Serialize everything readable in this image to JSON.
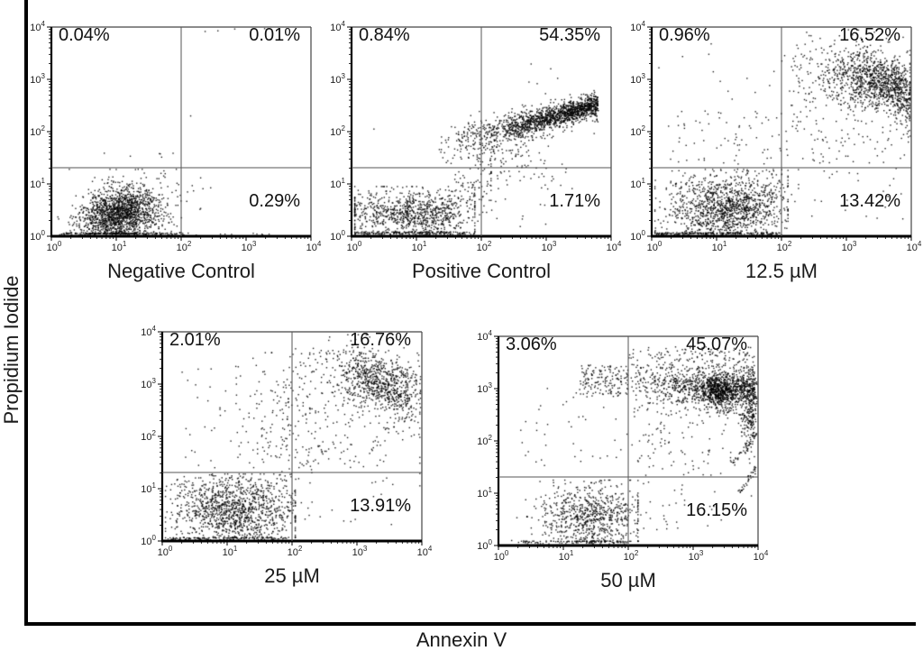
{
  "figure": {
    "x_label": "Annexin V",
    "y_label": "Propidium Iodide"
  },
  "chart_data": [
    {
      "type": "scatter",
      "title": "Negative Control",
      "seed": 11,
      "x_axis": {
        "scale": "log",
        "ticks": [
          0,
          1,
          2,
          3,
          4
        ],
        "label_base": "10"
      },
      "y_axis": {
        "scale": "log",
        "ticks": [
          0,
          1,
          2,
          3,
          4
        ],
        "label_base": "10"
      },
      "gates": {
        "x_log": 2.0,
        "y_log": 1.31
      },
      "quadrants": {
        "upper_left": "0.04%",
        "upper_right": "0.01%",
        "lower_right": "0.29%"
      },
      "clusters": [
        {
          "type": "gauss",
          "n": 1600,
          "cx": 1.05,
          "cy": 0.42,
          "sx": 0.3,
          "sy": 0.25,
          "rho": 0.15,
          "ymin": 0.05,
          "ymax": 1.25,
          "xmin": 0.1,
          "xmax": 2.1
        },
        {
          "type": "gauss",
          "n": 80,
          "cx": 1.5,
          "cy": 0.55,
          "sx": 0.35,
          "sy": 0.3,
          "ymax": 1.28,
          "xmax": 2.3
        },
        {
          "type": "uniform",
          "n": 130,
          "x": [
            0.1,
            2.05
          ],
          "y": [
            0.02,
            0.07
          ]
        },
        {
          "type": "uniform",
          "n": 10,
          "x": [
            2.05,
            3.4
          ],
          "y": [
            0.02,
            0.06
          ]
        },
        {
          "type": "gauss",
          "n": 35,
          "cx": 1.25,
          "cy": 1.0,
          "sx": 0.5,
          "sy": 0.18,
          "ymax": 1.28
        },
        {
          "type": "uniform",
          "n": 6,
          "x": [
            0.8,
            1.9
          ],
          "y": [
            1.35,
            1.75
          ]
        },
        {
          "type": "gauss",
          "n": 1,
          "cx": 2.15,
          "cy": 2.3,
          "sx": 0.01,
          "sy": 0.01
        },
        {
          "type": "uniform",
          "n": 4,
          "x": [
            2.3,
            3.3
          ],
          "y": [
            3.9,
            3.97
          ]
        }
      ]
    },
    {
      "type": "scatter",
      "title": "Positive Control",
      "seed": 22,
      "x_axis": {
        "scale": "log",
        "ticks": [
          0,
          1,
          2,
          3,
          4
        ],
        "label_base": "10"
      },
      "y_axis": {
        "scale": "log",
        "ticks": [
          0,
          1,
          2,
          3,
          4
        ],
        "label_base": "10"
      },
      "gates": {
        "x_log": 2.0,
        "y_log": 1.31
      },
      "quadrants": {
        "upper_left": "0.84%",
        "upper_right": "54.35%",
        "lower_right": "1.71%"
      },
      "clusters": [
        {
          "type": "uniform",
          "n": 160,
          "x": [
            0.05,
            1.9
          ],
          "y": [
            0.03,
            0.08
          ]
        },
        {
          "type": "gauss",
          "n": 850,
          "cx": 0.9,
          "cy": 0.45,
          "sx": 0.5,
          "sy": 0.22,
          "xmin": 0.05,
          "xmax": 1.9,
          "ymin": 0.08,
          "ymax": 0.95
        },
        {
          "type": "gauss",
          "n": 120,
          "cx": 1.75,
          "cy": 0.8,
          "sx": 0.3,
          "sy": 0.35,
          "rho": 0.6,
          "ymax": 1.6,
          "xmax": 2.15
        },
        {
          "type": "curve",
          "n": 500,
          "x": [
            1.6,
            3.8
          ],
          "pow": 0.8,
          "y0": 1.85,
          "y1": 2.5,
          "jitter": 0.15
        },
        {
          "type": "curve",
          "n": 1000,
          "x": [
            2.3,
            3.8
          ],
          "pow": 0.65,
          "y0": 2.0,
          "y1": 2.52,
          "jitter": 0.1
        },
        {
          "type": "gauss",
          "n": 130,
          "cx": 2.35,
          "cy": 1.75,
          "sx": 0.3,
          "sy": 0.25
        },
        {
          "type": "uniform",
          "n": 50,
          "x": [
            1.35,
            2.1
          ],
          "y": [
            1.35,
            2.1
          ]
        },
        {
          "type": "uniform",
          "n": 30,
          "x": [
            2.2,
            3.4
          ],
          "y": [
            0.9,
            1.45
          ]
        },
        {
          "type": "uniform",
          "n": 12,
          "x": [
            2.0,
            3.0
          ],
          "y": [
            0.15,
            0.8
          ]
        },
        {
          "type": "gauss",
          "n": 1,
          "cx": 0.35,
          "cy": 2.05,
          "sx": 0.01,
          "sy": 0.01
        },
        {
          "type": "uniform",
          "n": 5,
          "x": [
            2.6,
            3.6
          ],
          "y": [
            2.8,
            3.3
          ]
        }
      ]
    },
    {
      "type": "scatter",
      "title": "12.5 µM",
      "seed": 33,
      "x_axis": {
        "scale": "log",
        "ticks": [
          0,
          1,
          2,
          3,
          4
        ],
        "label_base": "10"
      },
      "y_axis": {
        "scale": "log",
        "ticks": [
          0,
          1,
          2,
          3,
          4
        ],
        "label_base": "10"
      },
      "gates": {
        "x_log": 2.0,
        "y_log": 1.31
      },
      "quadrants": {
        "upper_left": "0.96%",
        "upper_right": "16.52%",
        "lower_right": "13.42%"
      },
      "clusters": [
        {
          "type": "gauss",
          "n": 1200,
          "cx": 1.15,
          "cy": 0.5,
          "sx": 0.45,
          "sy": 0.3,
          "rho": 0.1,
          "xmin": 0.05,
          "xmax": 2.1,
          "ymin": 0.06,
          "ymax": 1.28
        },
        {
          "type": "uniform",
          "n": 140,
          "x": [
            0.05,
            2.0
          ],
          "y": [
            0.02,
            0.07
          ]
        },
        {
          "type": "uniform",
          "n": 110,
          "x": [
            0.2,
            2.05
          ],
          "y": [
            0.75,
            1.28
          ]
        },
        {
          "type": "uniform",
          "n": 70,
          "x": [
            0.25,
            2.0
          ],
          "y": [
            1.35,
            2.4
          ]
        },
        {
          "type": "gauss",
          "n": 750,
          "cx": 3.45,
          "cy": 2.95,
          "sx": 0.3,
          "sy": 0.28,
          "rho": -0.35,
          "xmax": 3.98,
          "ymax": 3.85
        },
        {
          "type": "gauss",
          "n": 220,
          "cx": 3.85,
          "cy": 2.7,
          "sx": 0.1,
          "sy": 0.38,
          "rho": -0.4,
          "xmax": 3.99
        },
        {
          "type": "gauss",
          "n": 230,
          "cx": 3.1,
          "cy": 3.1,
          "sx": 0.5,
          "sy": 0.35,
          "xmax": 3.98,
          "ymax": 3.9
        },
        {
          "type": "uniform",
          "n": 90,
          "x": [
            2.1,
            3.2
          ],
          "y": [
            2.2,
            3.6
          ]
        },
        {
          "type": "uniform",
          "n": 70,
          "x": [
            2.05,
            3.7
          ],
          "y": [
            1.4,
            2.2
          ]
        },
        {
          "type": "uniform",
          "n": 30,
          "x": [
            2.1,
            3.9
          ],
          "y": [
            0.3,
            1.3
          ]
        },
        {
          "type": "uniform",
          "n": 12,
          "x": [
            2.2,
            3.5
          ],
          "y": [
            3.7,
            3.95
          ]
        },
        {
          "type": "uniform",
          "n": 10,
          "x": [
            0.1,
            1.9
          ],
          "y": [
            2.5,
            3.9
          ]
        }
      ]
    },
    {
      "type": "scatter",
      "title": "25 µM",
      "seed": 44,
      "x_axis": {
        "scale": "log",
        "ticks": [
          0,
          1,
          2,
          3,
          4
        ],
        "label_base": "10"
      },
      "y_axis": {
        "scale": "log",
        "ticks": [
          0,
          1,
          2,
          3,
          4
        ],
        "label_base": "10"
      },
      "gates": {
        "x_log": 2.0,
        "y_log": 1.31
      },
      "quadrants": {
        "upper_left": "2.01%",
        "upper_right": "16.76%",
        "lower_right": "13.91%"
      },
      "clusters": [
        {
          "type": "gauss",
          "n": 1100,
          "cx": 1.1,
          "cy": 0.55,
          "sx": 0.45,
          "sy": 0.3,
          "xmin": 0.05,
          "xmax": 2.05,
          "ymin": 0.06,
          "ymax": 1.28
        },
        {
          "type": "uniform",
          "n": 120,
          "x": [
            0.05,
            1.95
          ],
          "y": [
            0.02,
            0.07
          ]
        },
        {
          "type": "uniform",
          "n": 110,
          "x": [
            0.1,
            2.0
          ],
          "y": [
            0.8,
            1.28
          ]
        },
        {
          "type": "gauss",
          "n": 600,
          "cx": 3.3,
          "cy": 3.05,
          "sx": 0.3,
          "sy": 0.27,
          "rho": -0.25,
          "xmax": 3.98,
          "ymax": 3.9
        },
        {
          "type": "gauss",
          "n": 180,
          "cx": 3.7,
          "cy": 2.7,
          "sx": 0.17,
          "sy": 0.4,
          "rho": -0.5,
          "xmax": 3.97
        },
        {
          "type": "gauss",
          "n": 150,
          "cx": 1.8,
          "cy": 2.3,
          "sx": 0.25,
          "sy": 0.75,
          "ymax": 3.6
        },
        {
          "type": "uniform",
          "n": 130,
          "x": [
            2.0,
            3.15
          ],
          "y": [
            2.5,
            3.7
          ]
        },
        {
          "type": "uniform",
          "n": 100,
          "x": [
            2.05,
            3.5
          ],
          "y": [
            1.4,
            2.5
          ]
        },
        {
          "type": "uniform",
          "n": 45,
          "x": [
            0.25,
            1.6
          ],
          "y": [
            1.4,
            3.4
          ]
        },
        {
          "type": "uniform",
          "n": 18,
          "x": [
            2.1,
            3.6
          ],
          "y": [
            0.3,
            1.3
          ]
        },
        {
          "type": "gauss",
          "n": 5,
          "cx": 3.96,
          "cy": 3.5,
          "sx": 0.02,
          "sy": 0.15
        },
        {
          "type": "uniform",
          "n": 10,
          "x": [
            2.3,
            3.2
          ],
          "y": [
            3.7,
            3.95
          ]
        }
      ]
    },
    {
      "type": "scatter",
      "title": "50 µM",
      "seed": 55,
      "x_axis": {
        "scale": "log",
        "ticks": [
          0,
          1,
          2,
          3,
          4
        ],
        "label_base": "10"
      },
      "y_axis": {
        "scale": "log",
        "ticks": [
          0,
          1,
          2,
          3,
          4
        ],
        "label_base": "10"
      },
      "gates": {
        "x_log": 2.0,
        "y_log": 1.31
      },
      "quadrants": {
        "upper_left": "3.06%",
        "upper_right": "45.07%",
        "lower_right": "16.15%"
      },
      "clusters": [
        {
          "type": "gauss",
          "n": 750,
          "cx": 1.4,
          "cy": 0.55,
          "sx": 0.4,
          "sy": 0.3,
          "xmin": 0.1,
          "xmax": 2.15,
          "ymin": 0.08,
          "ymax": 1.25
        },
        {
          "type": "uniform",
          "n": 90,
          "x": [
            0.3,
            2.0
          ],
          "y": [
            0.03,
            0.09
          ]
        },
        {
          "type": "curve",
          "n": 900,
          "x": [
            2.0,
            3.95
          ],
          "pow": 0.6,
          "y0": 3.12,
          "y1": 3.02,
          "jitter": 0.2
        },
        {
          "type": "gauss",
          "n": 550,
          "cx": 3.42,
          "cy": 2.95,
          "sx": 0.18,
          "sy": 0.16
        },
        {
          "type": "gauss",
          "n": 280,
          "cx": 3.88,
          "cy": 2.6,
          "sx": 0.09,
          "sy": 0.42,
          "xmax": 3.99
        },
        {
          "type": "uniform",
          "n": 150,
          "x": [
            1.25,
            2.0
          ],
          "y": [
            2.85,
            3.45
          ]
        },
        {
          "type": "uniform",
          "n": 130,
          "x": [
            2.0,
            3.9
          ],
          "y": [
            3.35,
            3.8
          ]
        },
        {
          "type": "uniform",
          "n": 110,
          "x": [
            2.05,
            3.6
          ],
          "y": [
            1.45,
            2.8
          ]
        },
        {
          "type": "uniform",
          "n": 45,
          "x": [
            0.3,
            2.0
          ],
          "y": [
            1.45,
            3.3
          ]
        },
        {
          "type": "uniform",
          "n": 40,
          "x": [
            2.1,
            3.5
          ],
          "y": [
            0.3,
            1.4
          ]
        },
        {
          "type": "line",
          "n": 35,
          "x0": 3.72,
          "y0": 1.0,
          "x1": 3.97,
          "y1": 1.5,
          "jitter": 0.02
        },
        {
          "type": "line",
          "n": 25,
          "x0": 3.78,
          "y0": 1.75,
          "x1": 3.97,
          "y1": 2.15,
          "jitter": 0.02
        },
        {
          "type": "line",
          "n": 22,
          "x0": 3.82,
          "y0": 2.2,
          "x1": 3.98,
          "y1": 2.55,
          "jitter": 0.02
        },
        {
          "type": "line",
          "n": 15,
          "x0": 3.6,
          "y0": 1.55,
          "x1": 3.75,
          "y1": 1.8,
          "jitter": 0.02
        }
      ]
    }
  ]
}
